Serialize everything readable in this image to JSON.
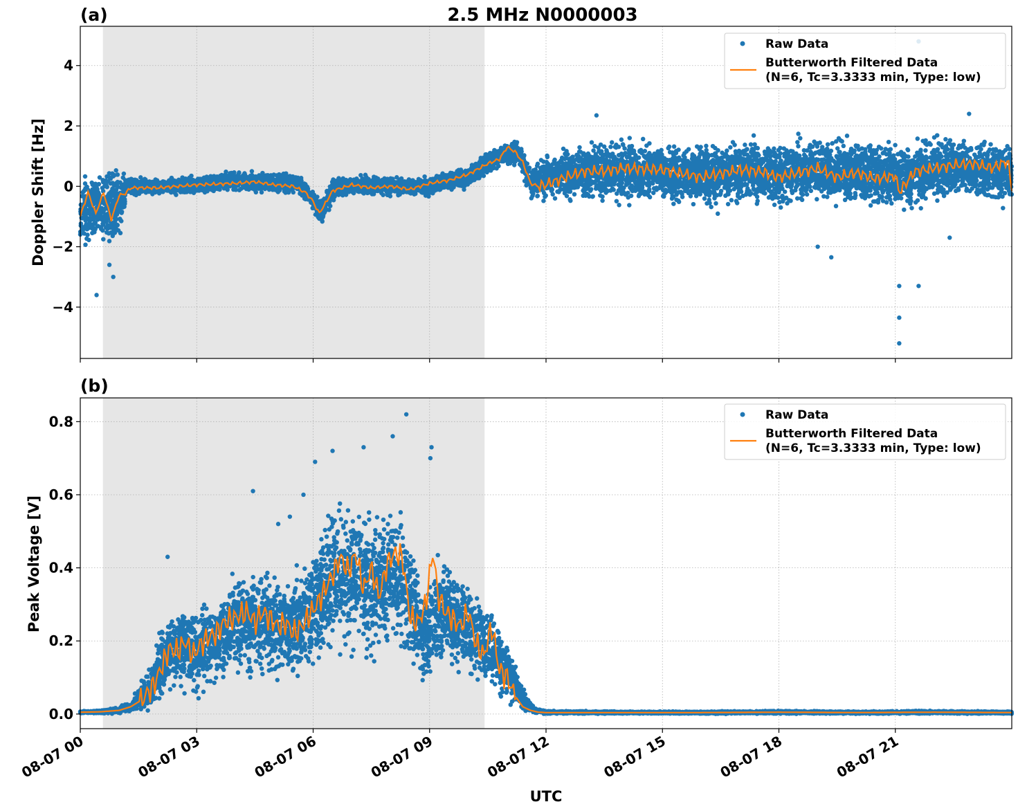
{
  "title": "2.5 MHz N0000003",
  "xlabel": "UTC",
  "x_tick_labels": [
    "08-07 00",
    "08-07 03",
    "08-07 06",
    "08-07 09",
    "08-07 12",
    "08-07 15",
    "08-07 18",
    "08-07 21"
  ],
  "legend": {
    "raw_label": "Raw Data",
    "filtered_label_line1": "Butterworth Filtered Data",
    "filtered_label_line2": "(N=6, Tc=3.3333 min, Type: low)"
  },
  "colors": {
    "raw": "#1f77b4",
    "filtered": "#ff7f0e",
    "shade": "#e6e6e6",
    "grid": "#b0b0b0"
  },
  "chart_data": [
    {
      "type": "scatter",
      "panel_label": "(a)",
      "xlabel": "UTC",
      "ylabel": "Doppler Shift [Hz]",
      "xlim": [
        "08-07 00:00",
        "08-07 24:00"
      ],
      "ylim": [
        -5.7,
        5.3
      ],
      "y_ticks": [
        -4,
        -2,
        0,
        2,
        4
      ],
      "y_tick_labels": [
        "−4",
        "−2",
        "0",
        "2",
        "4"
      ],
      "grid": true,
      "legend_position": "top-right",
      "shaded_interval": [
        "08-07 00:35",
        "08-07 10:25"
      ],
      "series": [
        {
          "name": "Raw Data",
          "style": "points",
          "x_hours": [
            0,
            0.5,
            1,
            1.2,
            1.5,
            2,
            3,
            4,
            5,
            5.6,
            6,
            6.2,
            6.5,
            7,
            8,
            9,
            9.5,
            10,
            10.5,
            11,
            11.3,
            11.6,
            12,
            13,
            14,
            15,
            16,
            17,
            18,
            19,
            20,
            21,
            21.6,
            22,
            23,
            24
          ],
          "y_center": [
            -0.9,
            -0.6,
            -0.7,
            0,
            0,
            0,
            0.05,
            0.2,
            0.1,
            0.1,
            -0.4,
            -0.9,
            -0.1,
            0.05,
            0,
            0,
            0.2,
            0.3,
            0.8,
            1.1,
            1.1,
            0.1,
            0.3,
            0.45,
            0.5,
            0.5,
            0.35,
            0.5,
            0.45,
            0.55,
            0.45,
            0.35,
            0.4,
            0.6,
            0.6,
            0.4
          ],
          "y_spread": [
            1.3,
            1.2,
            1.4,
            0.3,
            0.3,
            0.25,
            0.3,
            0.3,
            0.3,
            0.3,
            0.3,
            0.5,
            0.35,
            0.3,
            0.3,
            0.3,
            0.3,
            0.35,
            0.35,
            0.35,
            0.35,
            0.5,
            0.8,
            0.9,
            1.0,
            1.0,
            1.05,
            1.05,
            1.05,
            1.05,
            1.05,
            1.05,
            1.05,
            1.05,
            1.0,
            1.0
          ],
          "outliers": [
            [
              0.42,
              -3.6
            ],
            [
              0.85,
              -3.0
            ],
            [
              0.75,
              -2.6
            ],
            [
              13.3,
              2.35
            ],
            [
              21.1,
              -5.2
            ],
            [
              21.1,
              -4.35
            ],
            [
              21.1,
              -3.3
            ],
            [
              21.6,
              -3.3
            ],
            [
              21.6,
              4.8
            ],
            [
              22.4,
              -1.7
            ],
            [
              22.9,
              2.4
            ],
            [
              19.35,
              -2.35
            ],
            [
              19.0,
              -2.0
            ]
          ]
        },
        {
          "name": "Butterworth Filtered Data (N=6, Tc=3.3333 min, Type: low)",
          "style": "line",
          "x_hours": [
            0,
            0.2,
            0.4,
            0.6,
            0.8,
            1.0,
            1.15,
            1.3,
            2,
            3,
            4,
            4.5,
            5,
            5.5,
            5.8,
            6.0,
            6.15,
            6.3,
            6.5,
            7,
            7.5,
            8,
            8.5,
            9,
            9.5,
            10,
            10.5,
            10.8,
            11.0,
            11.2,
            11.4,
            11.6,
            11.8,
            12,
            12.5,
            13,
            13.5,
            14,
            15,
            16,
            17,
            17.5,
            18,
            19,
            19.5,
            20,
            20.5,
            21,
            21.1,
            21.5,
            22,
            22.5,
            23,
            23.5,
            23.9,
            24
          ],
          "values": [
            -1.0,
            -0.2,
            -0.9,
            -0.2,
            -1.1,
            -0.3,
            -0.25,
            -0.05,
            -0.05,
            0.05,
            0.1,
            0.15,
            0.05,
            0.0,
            -0.2,
            -0.5,
            -0.9,
            -0.6,
            -0.15,
            0.05,
            -0.05,
            0.0,
            -0.1,
            0.1,
            0.2,
            0.4,
            0.75,
            0.9,
            1.3,
            1.15,
            0.8,
            0.1,
            0.0,
            0.05,
            0.3,
            0.5,
            0.5,
            0.6,
            0.55,
            0.3,
            0.55,
            0.5,
            0.3,
            0.6,
            0.3,
            0.45,
            0.25,
            0.35,
            -0.2,
            0.5,
            0.6,
            0.7,
            0.75,
            0.6,
            0.85,
            -0.1
          ]
        }
      ]
    },
    {
      "type": "scatter",
      "panel_label": "(b)",
      "xlabel": "UTC",
      "ylabel": "Peak Voltage [V]",
      "xlim": [
        "08-07 00:00",
        "08-07 24:00"
      ],
      "ylim": [
        -0.04,
        0.865
      ],
      "y_ticks": [
        0.0,
        0.2,
        0.4,
        0.6,
        0.8
      ],
      "y_tick_labels": [
        "0.0",
        "0.2",
        "0.4",
        "0.6",
        "0.8"
      ],
      "grid": true,
      "legend_position": "top-right",
      "shaded_interval": [
        "08-07 00:35",
        "08-07 10:25"
      ],
      "series": [
        {
          "name": "Raw Data",
          "style": "points",
          "x_hours": [
            0,
            0.5,
            1,
            1.3,
            1.5,
            1.8,
            2,
            2.3,
            2.7,
            3,
            3.5,
            4,
            4.5,
            5,
            5.5,
            6,
            6.3,
            6.6,
            7,
            7.5,
            8,
            8.3,
            8.6,
            8.9,
            9.1,
            9.4,
            9.7,
            10,
            10.4,
            10.8,
            11.1,
            11.4,
            11.7,
            12,
            14,
            16,
            18,
            20,
            22,
            24
          ],
          "y_center": [
            0.005,
            0.006,
            0.01,
            0.02,
            0.04,
            0.07,
            0.12,
            0.17,
            0.19,
            0.17,
            0.2,
            0.25,
            0.26,
            0.24,
            0.23,
            0.28,
            0.33,
            0.4,
            0.38,
            0.35,
            0.38,
            0.37,
            0.28,
            0.2,
            0.25,
            0.28,
            0.25,
            0.24,
            0.2,
            0.15,
            0.1,
            0.04,
            0.01,
            0.005,
            0.004,
            0.004,
            0.005,
            0.004,
            0.005,
            0.004
          ],
          "y_spread": [
            0.003,
            0.004,
            0.008,
            0.015,
            0.03,
            0.06,
            0.09,
            0.12,
            0.12,
            0.12,
            0.12,
            0.14,
            0.14,
            0.14,
            0.14,
            0.15,
            0.17,
            0.2,
            0.2,
            0.18,
            0.2,
            0.2,
            0.15,
            0.12,
            0.15,
            0.15,
            0.13,
            0.12,
            0.1,
            0.09,
            0.07,
            0.03,
            0.008,
            0.004,
            0.003,
            0.003,
            0.004,
            0.003,
            0.004,
            0.003
          ],
          "outliers": [
            [
              8.4,
              0.82
            ],
            [
              7.3,
              0.73
            ],
            [
              6.5,
              0.72
            ],
            [
              8.05,
              0.76
            ],
            [
              4.45,
              0.61
            ],
            [
              5.75,
              0.6
            ],
            [
              2.25,
              0.43
            ],
            [
              9.05,
              0.73
            ],
            [
              9.02,
              0.7
            ],
            [
              6.05,
              0.69
            ],
            [
              5.1,
              0.52
            ],
            [
              5.4,
              0.54
            ]
          ]
        },
        {
          "name": "Butterworth Filtered Data (N=6, Tc=3.3333 min, Type: low)",
          "style": "line",
          "x_hours": [
            0,
            0.5,
            1.0,
            1.3,
            1.6,
            1.9,
            2.1,
            2.3,
            2.5,
            2.7,
            2.9,
            3.1,
            3.3,
            3.5,
            3.7,
            3.9,
            4.1,
            4.3,
            4.5,
            4.7,
            4.9,
            5.1,
            5.3,
            5.5,
            5.7,
            5.9,
            6.1,
            6.3,
            6.5,
            6.7,
            6.9,
            7.1,
            7.3,
            7.5,
            7.7,
            7.9,
            8.1,
            8.3,
            8.5,
            8.7,
            8.9,
            9.0,
            9.1,
            9.2,
            9.4,
            9.6,
            9.8,
            10.0,
            10.2,
            10.4,
            10.6,
            10.8,
            11.0,
            11.2,
            11.4,
            11.6,
            11.8,
            12.0,
            14,
            16,
            18,
            20,
            22,
            24
          ],
          "values": [
            0.005,
            0.006,
            0.01,
            0.02,
            0.04,
            0.08,
            0.13,
            0.18,
            0.17,
            0.2,
            0.16,
            0.19,
            0.21,
            0.22,
            0.25,
            0.26,
            0.27,
            0.28,
            0.25,
            0.28,
            0.26,
            0.24,
            0.25,
            0.22,
            0.24,
            0.27,
            0.3,
            0.34,
            0.38,
            0.43,
            0.39,
            0.44,
            0.34,
            0.4,
            0.32,
            0.41,
            0.44,
            0.43,
            0.26,
            0.25,
            0.3,
            0.38,
            0.45,
            0.33,
            0.28,
            0.26,
            0.24,
            0.28,
            0.19,
            0.16,
            0.24,
            0.12,
            0.1,
            0.05,
            0.02,
            0.01,
            0.005,
            0.004,
            0.004,
            0.004,
            0.005,
            0.004,
            0.005,
            0.004
          ]
        }
      ]
    }
  ]
}
